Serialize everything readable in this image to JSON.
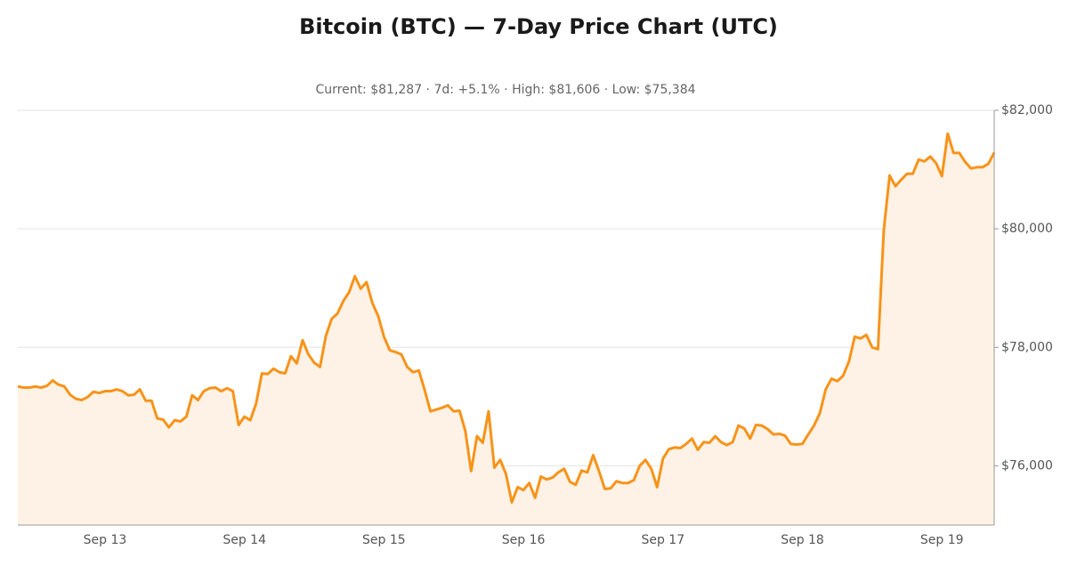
{
  "chart_data": {
    "type": "line",
    "title": "Bitcoin (BTC) — 7-Day Price Chart (UTC)",
    "subtitle": "Current: $81,287  ·  7d: +5.1%  ·  High: $81,606  ·  Low: $75,384",
    "categories": [
      null,
      null,
      null,
      null,
      null,
      null,
      null,
      null,
      null,
      null,
      null,
      null,
      null,
      null,
      null,
      "Sep 13",
      null,
      null,
      null,
      null,
      null,
      null,
      null,
      null,
      null,
      null,
      null,
      null,
      null,
      null,
      null,
      null,
      null,
      null,
      null,
      null,
      null,
      null,
      null,
      "Sep 14",
      null,
      null,
      null,
      null,
      null,
      null,
      null,
      null,
      null,
      null,
      null,
      null,
      null,
      null,
      null,
      null,
      null,
      null,
      null,
      null,
      null,
      null,
      null,
      "Sep 15",
      null,
      null,
      null,
      null,
      null,
      null,
      null,
      null,
      null,
      null,
      null,
      null,
      null,
      null,
      null,
      null,
      null,
      null,
      null,
      null,
      null,
      null,
      null,
      "Sep 16",
      null,
      null,
      null,
      null,
      null,
      null,
      null,
      null,
      null,
      null,
      null,
      null,
      null,
      null,
      null,
      null,
      null,
      null,
      null,
      null,
      null,
      null,
      null,
      "Sep 17",
      null,
      null,
      null,
      null,
      null,
      null,
      null,
      null,
      null,
      null,
      null,
      null,
      null,
      null,
      null,
      null,
      null,
      null,
      null,
      null,
      null,
      null,
      null,
      "Sep 18",
      null,
      null,
      null,
      null,
      null,
      null,
      null,
      null,
      null,
      null,
      null,
      null,
      null,
      null,
      null,
      null,
      null,
      null,
      null,
      null,
      null,
      null,
      null,
      "Sep 19",
      null,
      null,
      null,
      null,
      null,
      null,
      null,
      null,
      null
    ],
    "series": [
      {
        "name": "BTC",
        "color": "#f7931a",
        "fill": "#fdf2e5",
        "values": [
          77340,
          77320,
          77320,
          77340,
          77320,
          77350,
          77440,
          77370,
          77340,
          77200,
          77130,
          77110,
          77160,
          77250,
          77230,
          77260,
          77260,
          77290,
          77260,
          77190,
          77200,
          77290,
          77100,
          77100,
          76800,
          76780,
          76650,
          76770,
          76750,
          76830,
          77190,
          77110,
          77260,
          77310,
          77320,
          77260,
          77310,
          77260,
          76690,
          76830,
          76770,
          77050,
          77560,
          77550,
          77640,
          77580,
          77560,
          77850,
          77730,
          78120,
          77880,
          77740,
          77670,
          78190,
          78480,
          78570,
          78780,
          78930,
          79200,
          78990,
          79100,
          78750,
          78530,
          78180,
          77950,
          77920,
          77880,
          77670,
          77580,
          77610,
          77280,
          76920,
          76950,
          76980,
          77020,
          76920,
          76930,
          76590,
          75910,
          76500,
          76390,
          76920,
          75970,
          76100,
          75860,
          75384,
          75640,
          75590,
          75710,
          75460,
          75820,
          75770,
          75800,
          75890,
          75950,
          75730,
          75680,
          75920,
          75890,
          76180,
          75910,
          75610,
          75620,
          75740,
          75710,
          75710,
          75760,
          76000,
          76100,
          75950,
          75640,
          76120,
          76280,
          76310,
          76300,
          76370,
          76460,
          76270,
          76400,
          76390,
          76500,
          76400,
          76350,
          76400,
          76680,
          76630,
          76460,
          76690,
          76680,
          76620,
          76530,
          76540,
          76510,
          76370,
          76360,
          76370,
          76530,
          76680,
          76890,
          77290,
          77470,
          77430,
          77520,
          77760,
          78180,
          78150,
          78210,
          78000,
          77970,
          79980,
          80900,
          80720,
          80830,
          80930,
          80930,
          81170,
          81140,
          81220,
          81110,
          80890,
          81606,
          81280,
          81280,
          81130,
          81020,
          81040,
          81040,
          81100,
          81287
        ]
      }
    ],
    "ylim": [
      75000,
      82000
    ],
    "yticks": [
      {
        "value": 76000,
        "label": "$76,000"
      },
      {
        "value": 78000,
        "label": "$78,000"
      },
      {
        "value": 80000,
        "label": "$80,000"
      },
      {
        "value": 82000,
        "label": "$82,000"
      }
    ],
    "grid": true
  }
}
